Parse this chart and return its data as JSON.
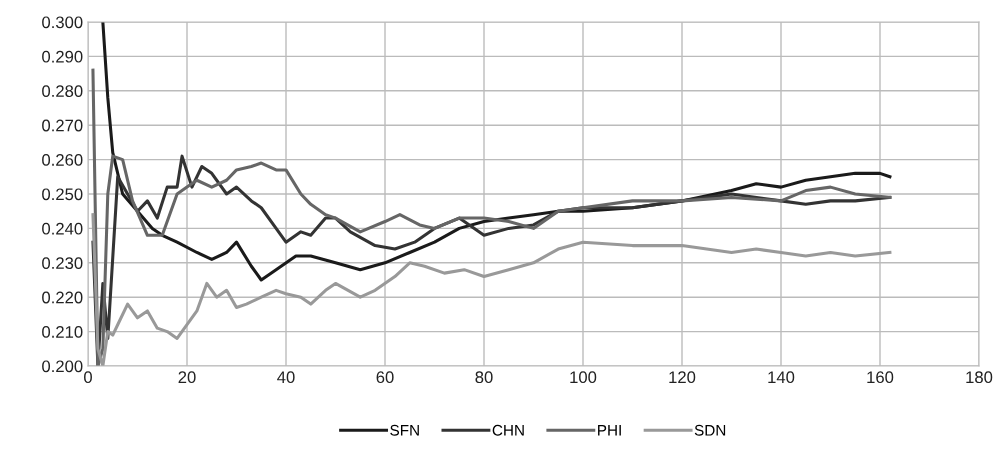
{
  "chart_data": {
    "type": "line",
    "legend": "bottom",
    "grid": true,
    "marker": "none",
    "line_style": "solid",
    "xlim": [
      0,
      180
    ],
    "xticks": [
      0,
      20,
      40,
      60,
      80,
      100,
      120,
      140,
      160,
      180
    ],
    "ylim": [
      0.2,
      0.3
    ],
    "yticks": [
      {
        "value": 0.2,
        "label": "0.200"
      },
      {
        "value": 0.21,
        "label": "0.210"
      },
      {
        "value": 0.22,
        "label": "0.220"
      },
      {
        "value": 0.23,
        "label": "0.230"
      },
      {
        "value": 0.24,
        "label": "0.240"
      },
      {
        "value": 0.25,
        "label": "0.250"
      },
      {
        "value": 0.26,
        "label": "0.260"
      },
      {
        "value": 0.27,
        "label": "0.270"
      },
      {
        "value": 0.28,
        "label": "0.280"
      },
      {
        "value": 0.29,
        "label": "0.290"
      },
      {
        "value": 0.3,
        "label": "0.300"
      }
    ],
    "series": [
      {
        "name": "SFN",
        "color": "#1a1a1a",
        "x": [
          3,
          4,
          5,
          7,
          10,
          13,
          15,
          18,
          22,
          25,
          28,
          30,
          33,
          35,
          38,
          42,
          45,
          50,
          55,
          60,
          65,
          70,
          75,
          80,
          85,
          90,
          95,
          100,
          110,
          120,
          130,
          135,
          140,
          145,
          150,
          155,
          160,
          162
        ],
        "values": [
          0.3,
          0.278,
          0.262,
          0.25,
          0.245,
          0.24,
          0.238,
          0.236,
          0.233,
          0.231,
          0.233,
          0.236,
          0.229,
          0.225,
          0.228,
          0.232,
          0.232,
          0.23,
          0.228,
          0.23,
          0.233,
          0.236,
          0.24,
          0.242,
          0.243,
          0.244,
          0.245,
          0.245,
          0.246,
          0.248,
          0.251,
          0.253,
          0.252,
          0.254,
          0.255,
          0.256,
          0.256,
          0.255
        ]
      },
      {
        "name": "CHN",
        "color": "#333333",
        "x": [
          1,
          2,
          3,
          4,
          6,
          8,
          10,
          12,
          14,
          16,
          18,
          19,
          21,
          23,
          25,
          28,
          30,
          33,
          35,
          38,
          40,
          43,
          45,
          48,
          50,
          53,
          58,
          62,
          66,
          70,
          75,
          80,
          85,
          90,
          95,
          100,
          110,
          120,
          130,
          140,
          145,
          150,
          155,
          162
        ],
        "values": [
          0.236,
          0.2,
          0.224,
          0.208,
          0.255,
          0.25,
          0.245,
          0.248,
          0.243,
          0.252,
          0.252,
          0.261,
          0.252,
          0.258,
          0.256,
          0.25,
          0.252,
          0.248,
          0.246,
          0.24,
          0.236,
          0.239,
          0.238,
          0.243,
          0.243,
          0.239,
          0.235,
          0.234,
          0.236,
          0.24,
          0.243,
          0.238,
          0.24,
          0.241,
          0.245,
          0.246,
          0.246,
          0.248,
          0.25,
          0.248,
          0.247,
          0.248,
          0.248,
          0.249
        ]
      },
      {
        "name": "PHI",
        "color": "#666666",
        "x": [
          1,
          2,
          3,
          4,
          5,
          7,
          9,
          12,
          15,
          18,
          20,
          22,
          25,
          28,
          30,
          33,
          35,
          38,
          40,
          43,
          45,
          48,
          50,
          55,
          60,
          63,
          67,
          70,
          75,
          80,
          85,
          90,
          95,
          100,
          110,
          120,
          130,
          140,
          145,
          150,
          155,
          162
        ],
        "values": [
          0.286,
          0.2,
          0.205,
          0.25,
          0.261,
          0.26,
          0.248,
          0.238,
          0.238,
          0.25,
          0.252,
          0.254,
          0.252,
          0.254,
          0.257,
          0.258,
          0.259,
          0.257,
          0.257,
          0.25,
          0.247,
          0.244,
          0.243,
          0.239,
          0.242,
          0.244,
          0.241,
          0.24,
          0.243,
          0.243,
          0.242,
          0.24,
          0.245,
          0.246,
          0.248,
          0.248,
          0.249,
          0.248,
          0.251,
          0.252,
          0.25,
          0.249
        ]
      },
      {
        "name": "SDN",
        "color": "#999999",
        "x": [
          1,
          2,
          3,
          4,
          5,
          6,
          8,
          10,
          12,
          14,
          16,
          18,
          20,
          22,
          24,
          26,
          28,
          30,
          32,
          35,
          38,
          40,
          43,
          45,
          48,
          50,
          55,
          58,
          62,
          65,
          68,
          72,
          76,
          80,
          85,
          90,
          95,
          100,
          110,
          120,
          125,
          130,
          135,
          140,
          145,
          150,
          155,
          162
        ],
        "values": [
          0.244,
          0.205,
          0.2,
          0.21,
          0.209,
          0.212,
          0.218,
          0.214,
          0.216,
          0.211,
          0.21,
          0.208,
          0.212,
          0.216,
          0.224,
          0.22,
          0.222,
          0.217,
          0.218,
          0.22,
          0.222,
          0.221,
          0.22,
          0.218,
          0.222,
          0.224,
          0.22,
          0.222,
          0.226,
          0.23,
          0.229,
          0.227,
          0.228,
          0.226,
          0.228,
          0.23,
          0.234,
          0.236,
          0.235,
          0.235,
          0.234,
          0.233,
          0.234,
          0.233,
          0.232,
          0.233,
          0.232,
          0.233
        ]
      }
    ]
  }
}
